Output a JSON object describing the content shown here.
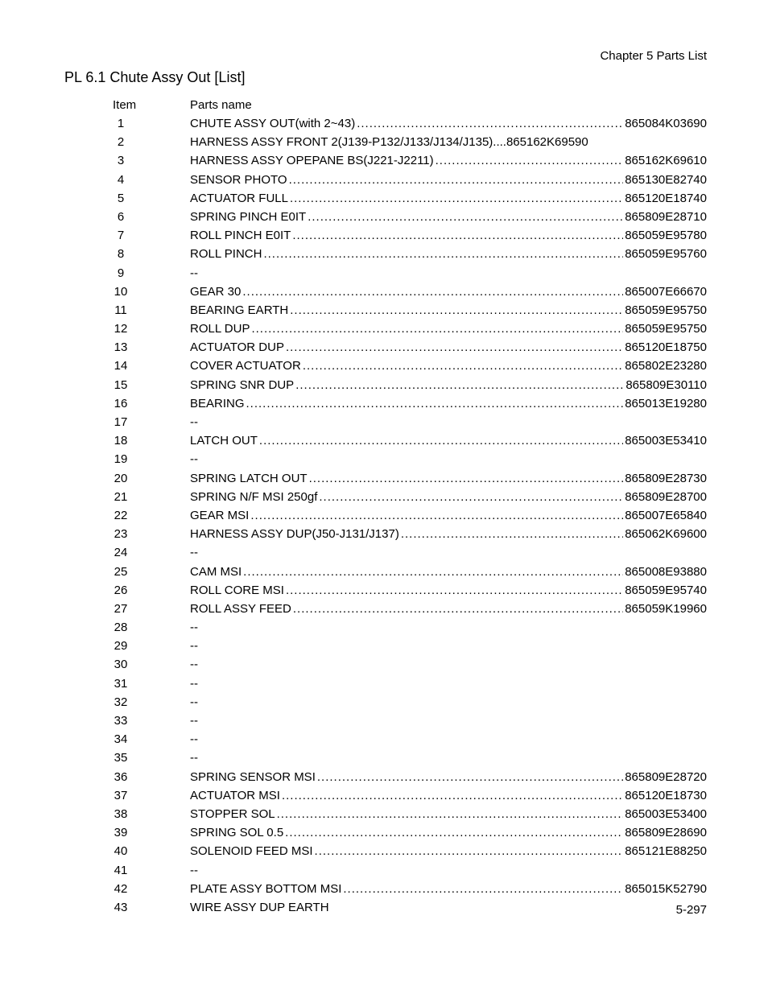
{
  "chapter_header": "Chapter 5  Parts List",
  "section_title": "PL 6.1  Chute Assy Out  [List]",
  "table_header": {
    "item": "Item",
    "name": "Parts name"
  },
  "dots_fill": "......................................................................................................................................",
  "parts": [
    {
      "item": "1",
      "name": "CHUTE ASSY OUT(with 2~43)",
      "number": "865084K03690"
    },
    {
      "item": "2",
      "name": "HARNESS ASSY FRONT 2(J139-P132/J133/J134/J135)",
      "number": "865162K69590",
      "tight": true
    },
    {
      "item": "3",
      "name": "HARNESS ASSY OPEPANE BS(J221-J2211)",
      "number": "865162K69610"
    },
    {
      "item": "4",
      "name": "SENSOR PHOTO ",
      "number": "865130E82740"
    },
    {
      "item": "5",
      "name": "ACTUATOR FULL",
      "number": "865120E18740"
    },
    {
      "item": "6",
      "name": "SPRING PINCH E0IT",
      "number": "865809E28710"
    },
    {
      "item": "7",
      "name": "ROLL PINCH E0IT ",
      "number": "865059E95780"
    },
    {
      "item": "8",
      "name": "ROLL PINCH",
      "number": "865059E95760"
    },
    {
      "item": "9",
      "name": "--",
      "number": ""
    },
    {
      "item": "10",
      "name": "GEAR 30 ",
      "number": "865007E66670"
    },
    {
      "item": "11",
      "name": "BEARING EARTH",
      "number": "865059E95750"
    },
    {
      "item": "12",
      "name": "ROLL DUP ",
      "number": "865059E95750"
    },
    {
      "item": "13",
      "name": "ACTUATOR DUP",
      "number": "865120E18750"
    },
    {
      "item": "14",
      "name": "COVER ACTUATOR",
      "number": "865802E23280"
    },
    {
      "item": "15",
      "name": "SPRING SNR DUP ",
      "number": "865809E30110"
    },
    {
      "item": "16",
      "name": "BEARING ",
      "number": "865013E19280"
    },
    {
      "item": "17",
      "name": "--",
      "number": ""
    },
    {
      "item": "18",
      "name": "LATCH OUT ",
      "number": "865003E53410"
    },
    {
      "item": "19",
      "name": "--",
      "number": ""
    },
    {
      "item": "20",
      "name": "SPRING LATCH OUT ",
      "number": "865809E28730"
    },
    {
      "item": "21",
      "name": "SPRING N/F MSI 250gf ",
      "number": "865809E28700"
    },
    {
      "item": "22",
      "name": "GEAR MSI",
      "number": "865007E65840"
    },
    {
      "item": "23",
      "name": "HARNESS ASSY DUP(J50-J131/J137)",
      "number": "865062K69600"
    },
    {
      "item": "24",
      "name": "--",
      "number": ""
    },
    {
      "item": "25",
      "name": "CAM MSI",
      "number": "865008E93880"
    },
    {
      "item": "26",
      "name": "ROLL CORE MSI",
      "number": "865059E95740"
    },
    {
      "item": "27",
      "name": "ROLL ASSY FEED",
      "number": "865059K19960"
    },
    {
      "item": "28",
      "name": "--",
      "number": ""
    },
    {
      "item": "29",
      "name": "--",
      "number": ""
    },
    {
      "item": "30",
      "name": "--",
      "number": ""
    },
    {
      "item": "31",
      "name": "--",
      "number": ""
    },
    {
      "item": "32",
      "name": "--",
      "number": ""
    },
    {
      "item": "33",
      "name": "--",
      "number": ""
    },
    {
      "item": "34",
      "name": "--",
      "number": ""
    },
    {
      "item": "35",
      "name": "--",
      "number": ""
    },
    {
      "item": "36",
      "name": "SPRING SENSOR MSI",
      "number": "865809E28720"
    },
    {
      "item": "37",
      "name": "ACTUATOR MSI ",
      "number": "865120E18730"
    },
    {
      "item": "38",
      "name": "STOPPER SOL",
      "number": "865003E53400"
    },
    {
      "item": "39",
      "name": "SPRING SOL 0.5 ",
      "number": "865809E28690"
    },
    {
      "item": "40",
      "name": "SOLENOID FEED MSI",
      "number": "865121E88250"
    },
    {
      "item": "41",
      "name": "--",
      "number": ""
    },
    {
      "item": "42",
      "name": "PLATE ASSY BOTTOM MSI",
      "number": "865015K52790"
    },
    {
      "item": "43",
      "name": "WIRE ASSY DUP EARTH",
      "number": ""
    }
  ],
  "page_number": "5-297"
}
